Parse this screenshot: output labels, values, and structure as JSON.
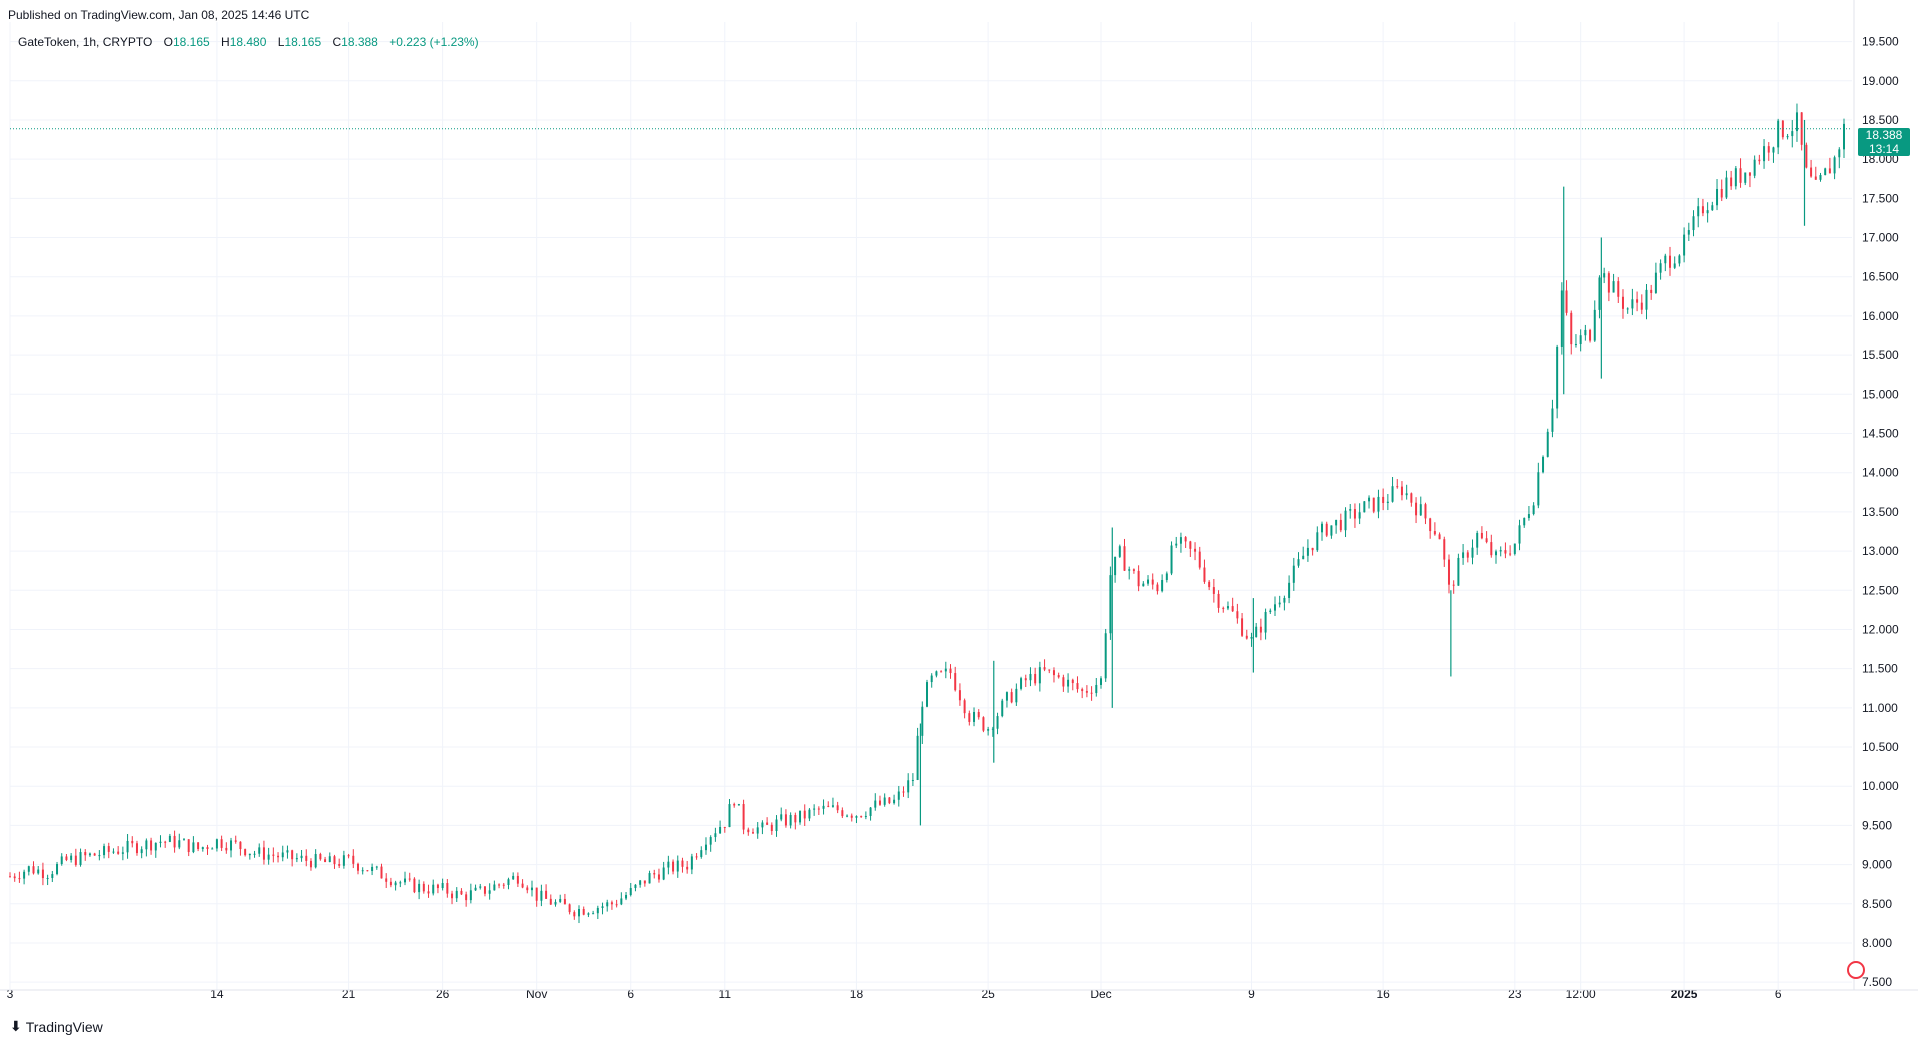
{
  "header": {
    "published": "Published on TradingView.com, Jan 08, 2025 14:46 UTC",
    "symbol": "GateToken, 1h, CRYPTO",
    "o_label": "O",
    "o_value": "18.165",
    "h_label": "H",
    "h_value": "18.480",
    "l_label": "L",
    "l_value": "18.165",
    "c_label": "C",
    "c_value": "18.388",
    "change": "+0.223 (+1.23%)"
  },
  "last_price": {
    "value": "18.388",
    "countdown": "13:14",
    "color": "#089981"
  },
  "footer": {
    "logo_text": "TradingView"
  },
  "colors": {
    "up": "#089981",
    "down": "#f23645",
    "grid": "#f0f3fa",
    "axis_text": "#131722"
  },
  "chart_data": {
    "type": "candlestick",
    "timeframe": "1h",
    "ylim": [
      7.4,
      19.75
    ],
    "y_ticks": [
      "19.500",
      "19.000",
      "18.500",
      "18.000",
      "17.500",
      "17.000",
      "16.500",
      "16.000",
      "15.500",
      "15.000",
      "14.500",
      "14.000",
      "13.500",
      "13.000",
      "12.500",
      "12.000",
      "11.500",
      "11.000",
      "10.500",
      "10.000",
      "9.500",
      "9.000",
      "8.500",
      "8.000",
      "7.500"
    ],
    "x_ticks": [
      "3",
      "14",
      "21",
      "26",
      "Nov",
      "6",
      "11",
      "18",
      "25",
      "Dec",
      "9",
      "16",
      "23",
      "12:00",
      "2025",
      "6"
    ],
    "x_ticks_bold": [
      "2025"
    ],
    "x_tick_days": [
      3,
      14,
      21,
      26,
      31,
      36,
      41,
      48,
      55,
      61,
      69,
      76,
      83,
      86.5,
      92,
      97
    ],
    "date_range_days": [
      3,
      100.5
    ],
    "day_zero": "2024-10-01",
    "last_value": 18.388,
    "series_points": [
      [
        3.0,
        8.85
      ],
      [
        4.0,
        8.95
      ],
      [
        5.0,
        8.9
      ],
      [
        6.0,
        9.05
      ],
      [
        7.0,
        9.1
      ],
      [
        8.0,
        9.15
      ],
      [
        9.0,
        9.2
      ],
      [
        10.0,
        9.25
      ],
      [
        11.0,
        9.3
      ],
      [
        12.0,
        9.28
      ],
      [
        13.0,
        9.2
      ],
      [
        14.0,
        9.3
      ],
      [
        15.0,
        9.25
      ],
      [
        16.0,
        9.15
      ],
      [
        17.0,
        9.12
      ],
      [
        18.0,
        9.08
      ],
      [
        19.0,
        9.05
      ],
      [
        20.0,
        9.02
      ],
      [
        21.0,
        9.05
      ],
      [
        22.0,
        8.95
      ],
      [
        23.0,
        8.85
      ],
      [
        24.0,
        8.75
      ],
      [
        25.0,
        8.7
      ],
      [
        26.0,
        8.68
      ],
      [
        27.0,
        8.6
      ],
      [
        28.0,
        8.65
      ],
      [
        29.0,
        8.75
      ],
      [
        30.0,
        8.85
      ],
      [
        30.5,
        8.75
      ],
      [
        31.0,
        8.6
      ],
      [
        32.0,
        8.5
      ],
      [
        33.0,
        8.42
      ],
      [
        34.0,
        8.45
      ],
      [
        35.0,
        8.5
      ],
      [
        36.0,
        8.65
      ],
      [
        37.0,
        8.85
      ],
      [
        38.0,
        8.95
      ],
      [
        39.0,
        9.0
      ],
      [
        40.0,
        9.35
      ],
      [
        41.0,
        9.55
      ],
      [
        41.5,
        9.85
      ],
      [
        42.0,
        9.5
      ],
      [
        43.0,
        9.45
      ],
      [
        44.0,
        9.55
      ],
      [
        45.0,
        9.6
      ],
      [
        46.0,
        9.7
      ],
      [
        47.0,
        9.7
      ],
      [
        48.0,
        9.65
      ],
      [
        49.0,
        9.75
      ],
      [
        50.0,
        9.8
      ],
      [
        51.0,
        10.1
      ],
      [
        51.5,
        11.1
      ],
      [
        52.0,
        11.35
      ],
      [
        53.0,
        11.45
      ],
      [
        54.0,
        10.9
      ],
      [
        55.0,
        10.75
      ],
      [
        56.0,
        11.1
      ],
      [
        57.0,
        11.35
      ],
      [
        58.0,
        11.45
      ],
      [
        59.0,
        11.35
      ],
      [
        60.0,
        11.2
      ],
      [
        61.0,
        11.35
      ],
      [
        61.5,
        12.7
      ],
      [
        62.0,
        12.95
      ],
      [
        63.0,
        12.6
      ],
      [
        64.0,
        12.55
      ],
      [
        65.0,
        13.1
      ],
      [
        66.0,
        12.95
      ],
      [
        67.0,
        12.45
      ],
      [
        68.0,
        12.2
      ],
      [
        69.0,
        11.85
      ],
      [
        70.0,
        12.25
      ],
      [
        71.0,
        12.6
      ],
      [
        72.0,
        13.05
      ],
      [
        73.0,
        13.3
      ],
      [
        74.0,
        13.4
      ],
      [
        75.0,
        13.55
      ],
      [
        76.0,
        13.65
      ],
      [
        77.0,
        13.8
      ],
      [
        78.0,
        13.5
      ],
      [
        79.0,
        13.2
      ],
      [
        79.5,
        12.5
      ],
      [
        80.0,
        12.8
      ],
      [
        81.0,
        13.2
      ],
      [
        82.0,
        12.9
      ],
      [
        83.0,
        13.1
      ],
      [
        84.0,
        13.7
      ],
      [
        85.0,
        14.9
      ],
      [
        85.5,
        16.3
      ],
      [
        86.0,
        15.6
      ],
      [
        87.0,
        15.8
      ],
      [
        87.5,
        16.6
      ],
      [
        88.0,
        16.4
      ],
      [
        89.0,
        16.1
      ],
      [
        90.0,
        16.25
      ],
      [
        91.0,
        16.7
      ],
      [
        92.0,
        16.9
      ],
      [
        93.0,
        17.4
      ],
      [
        94.0,
        17.65
      ],
      [
        95.0,
        17.8
      ],
      [
        96.0,
        18.05
      ],
      [
        97.0,
        18.35
      ],
      [
        98.0,
        18.45
      ],
      [
        98.5,
        17.8
      ],
      [
        99.0,
        17.6
      ],
      [
        100.0,
        18.0
      ],
      [
        100.5,
        18.388
      ]
    ],
    "spikes": [
      [
        85.6,
        17.65,
        15.0
      ],
      [
        87.6,
        17.0,
        15.2
      ],
      [
        79.6,
        12.5,
        11.4
      ],
      [
        61.6,
        13.3,
        11.0
      ],
      [
        69.1,
        12.4,
        11.45
      ],
      [
        51.4,
        10.8,
        9.5
      ],
      [
        98.4,
        18.5,
        17.15
      ],
      [
        55.3,
        11.6,
        10.3
      ]
    ]
  }
}
